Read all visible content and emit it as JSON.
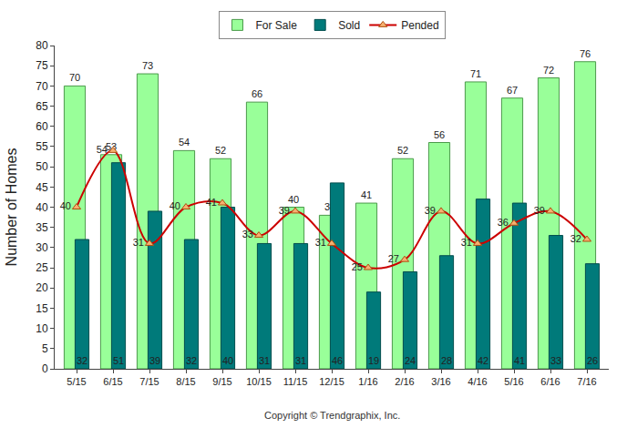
{
  "chart_data": {
    "type": "bar",
    "categories": [
      "5/15",
      "6/15",
      "7/15",
      "8/15",
      "9/15",
      "10/15",
      "11/15",
      "12/15",
      "1/16",
      "2/16",
      "3/16",
      "4/16",
      "5/16",
      "6/16",
      "7/16"
    ],
    "series": [
      {
        "name": "For Sale",
        "type": "bar",
        "color": "#99ff99",
        "values": [
          70,
          53,
          73,
          54,
          52,
          66,
          40,
          38,
          41,
          52,
          56,
          71,
          67,
          72,
          76
        ]
      },
      {
        "name": "Sold",
        "type": "bar",
        "color": "#007a7a",
        "values": [
          32,
          51,
          39,
          32,
          40,
          31,
          31,
          46,
          19,
          24,
          28,
          42,
          41,
          33,
          26
        ]
      },
      {
        "name": "Pended",
        "type": "line",
        "color": "#cc0000",
        "marker": "triangle-up",
        "line_style": "spline",
        "values": [
          40,
          54,
          31,
          40,
          41,
          33,
          39,
          31,
          25,
          27,
          39,
          31,
          36,
          39,
          32
        ]
      }
    ],
    "y_label": "Number of Homes",
    "ylim": [
      0,
      80
    ],
    "yticks": [
      0,
      5,
      10,
      15,
      20,
      25,
      30,
      35,
      40,
      45,
      50,
      55,
      60,
      65,
      70,
      75,
      80
    ],
    "annotations": [
      "Copyright © Trendgraphix, Inc."
    ],
    "data_labels": true,
    "legend": "top",
    "grid": false
  }
}
